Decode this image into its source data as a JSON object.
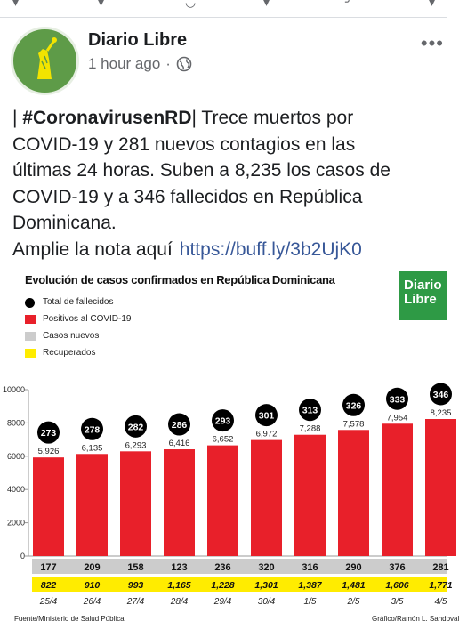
{
  "post": {
    "page_name": "Diario Libre",
    "time": "1 hour ago",
    "separator": "·",
    "text_prefix": "| ",
    "hashtag": "#CoronavirusenRD",
    "text_lines": [
      "| Trece muertos por",
      "COVID-19 y 281 nuevos contagios en las",
      "últimas 24 horas. Suben a 8,235 los casos de",
      "COVID-19 y a 346 fallecidos en República",
      "Dominicana."
    ],
    "cta": "Amplie la nota aquí",
    "link": "https://buff.ly/3b2UjK0"
  },
  "image": {
    "logo_line1": "Diario",
    "logo_line2": "Libre",
    "source_note": "Fuente/Ministerio de Salud Pública",
    "credit": "Gráfico/Ramón L. Sandoval"
  },
  "chart_data": {
    "type": "bar",
    "title": "Evolución de casos confirmados en República Dominicana",
    "legend": [
      {
        "label": "Total de fallecidos",
        "color": "#000000",
        "shape": "circle"
      },
      {
        "label": "Positivos al COVID-19",
        "color": "#e8202a",
        "shape": "square"
      },
      {
        "label": "Casos nuevos",
        "color": "#cccccc",
        "shape": "square"
      },
      {
        "label": "Recuperados",
        "color": "#ffec00",
        "shape": "square"
      }
    ],
    "categories": [
      "25/4",
      "26/4",
      "27/4",
      "28/4",
      "29/4",
      "30/4",
      "1/5",
      "2/5",
      "3/5",
      "4/5"
    ],
    "positives": [
      5926,
      6135,
      6293,
      6416,
      6652,
      6972,
      7288,
      7578,
      7954,
      8235
    ],
    "positive_labels": [
      "5,926",
      "6,135",
      "6,293",
      "6,416",
      "6,652",
      "6,972",
      "7,288",
      "7,578",
      "7,954",
      "8,235"
    ],
    "deaths": [
      273,
      278,
      282,
      286,
      293,
      301,
      313,
      326,
      333,
      346
    ],
    "new_cases": [
      177,
      209,
      158,
      123,
      236,
      320,
      316,
      290,
      376,
      281
    ],
    "recovered_labels": [
      "822",
      "910",
      "993",
      "1,165",
      "1,228",
      "1,301",
      "1,387",
      "1,481",
      "1,606",
      "1,771"
    ],
    "yticks": [
      0,
      2000,
      4000,
      6000,
      8000,
      10000
    ],
    "ylim": [
      0,
      10000
    ],
    "colors": {
      "bar": "#e8202a",
      "death_circle": "#000000",
      "new_band": "#cccccc",
      "recovered_band": "#ffec00"
    }
  }
}
